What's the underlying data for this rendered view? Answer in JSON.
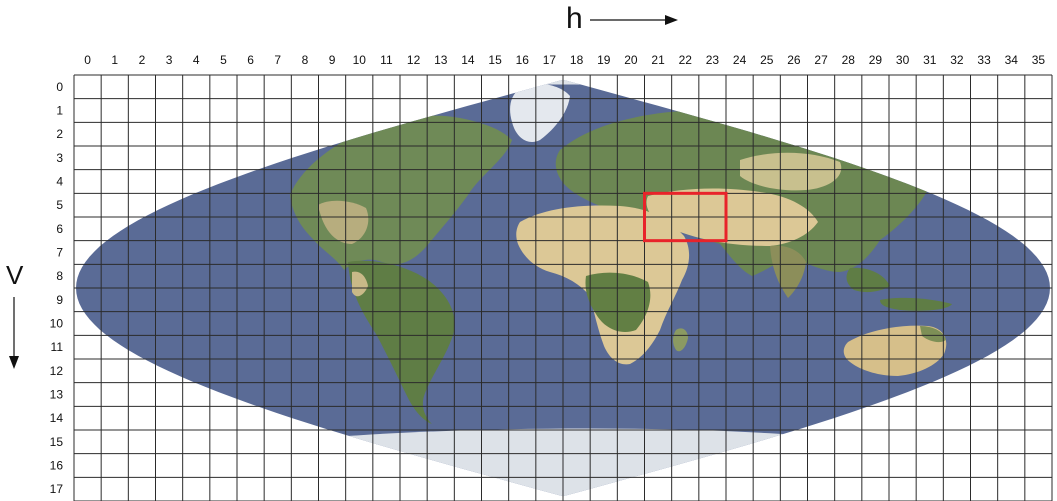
{
  "figure": {
    "horizontal_axis_label": "h",
    "vertical_axis_label": "V",
    "columns": [
      "0",
      "1",
      "2",
      "3",
      "4",
      "5",
      "6",
      "7",
      "8",
      "9",
      "10",
      "11",
      "12",
      "13",
      "14",
      "15",
      "16",
      "17",
      "18",
      "19",
      "20",
      "21",
      "22",
      "23",
      "24",
      "25",
      "26",
      "27",
      "28",
      "29",
      "30",
      "31",
      "32",
      "33",
      "34",
      "35"
    ],
    "rows": [
      "0",
      "1",
      "2",
      "3",
      "4",
      "5",
      "6",
      "7",
      "8",
      "9",
      "10",
      "11",
      "12",
      "13",
      "14",
      "15",
      "16",
      "17"
    ],
    "highlight": {
      "h_start": 21,
      "h_end": 23,
      "v_start": 5,
      "v_end": 6,
      "color": "#e8232a"
    }
  },
  "colors": {
    "ocean": "#5a6b96",
    "land_green": "#6f8a57",
    "land_desert": "#d9c79a",
    "ice": "#dde2e8",
    "grid_line": "#2b2b2b",
    "background": "#ffffff"
  }
}
